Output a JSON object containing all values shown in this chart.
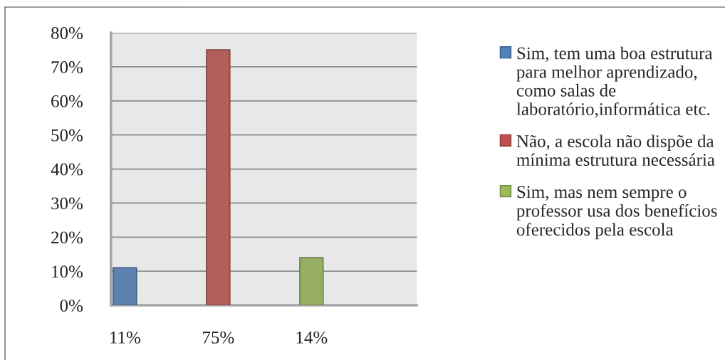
{
  "chart_data": {
    "type": "bar",
    "categories": [
      "11%",
      "75%",
      "14%"
    ],
    "series": [
      {
        "name": "Sim, tem uma boa estrutura para melhor aprendizado, como salas de laboratório,informática etc.",
        "color": "#4f81bd",
        "values": [
          11,
          null,
          null
        ]
      },
      {
        "name": "Não, a escola não dispõe da mínima estrutura necessária",
        "color": "#c0504d",
        "values": [
          null,
          75,
          null
        ]
      },
      {
        "name": "Sim, mas nem sempre o professor usa dos benefícios oferecidos pela escola",
        "color": "#9bbb59",
        "values": [
          null,
          null,
          14
        ]
      }
    ],
    "ylim": [
      0,
      80
    ],
    "yticks": [
      {
        "value": 0,
        "label": "0%"
      },
      {
        "value": 10,
        "label": "10%"
      },
      {
        "value": 20,
        "label": "20%"
      },
      {
        "value": 30,
        "label": "30%"
      },
      {
        "value": 40,
        "label": "40%"
      },
      {
        "value": 50,
        "label": "50%"
      },
      {
        "value": 60,
        "label": "60%"
      },
      {
        "value": 70,
        "label": "70%"
      },
      {
        "value": 80,
        "label": "80%"
      }
    ],
    "grid": "y",
    "legend": "right"
  }
}
